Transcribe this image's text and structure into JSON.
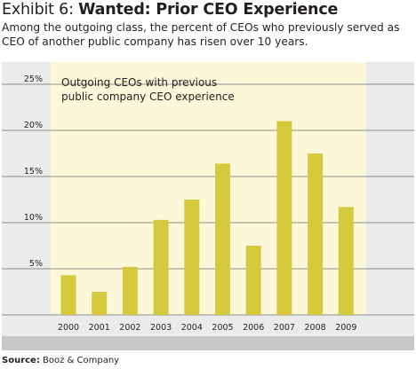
{
  "header": {
    "exhibit_number": "Exhibit 6: ",
    "headline": "Wanted: Prior CEO Experience",
    "subtitle": "Among the outgoing class, the percent of CEOs who previously served as CEO of another public company has risen over 10 years."
  },
  "source": {
    "label": "Source:",
    "text": " Booz & Company"
  },
  "colors": {
    "bar": "#d5c93d",
    "plot_bg": "#fbf7d8",
    "panel_bg": "#ebebeb",
    "footer_band": "#c7c7c7",
    "gridline": "#6d6e71"
  },
  "chart_data": {
    "type": "bar",
    "title": "",
    "xlabel": "",
    "ylabel": "",
    "annotation": "Outgoing CEOs with previous public company CEO experience",
    "annotation_lines": [
      "Outgoing CEOs with previous",
      "public company CEO experience"
    ],
    "categories": [
      "2000",
      "2001",
      "2002",
      "2003",
      "2004",
      "2005",
      "2006",
      "2007",
      "2008",
      "2009"
    ],
    "values": [
      4.3,
      2.5,
      5.2,
      10.3,
      12.5,
      16.4,
      7.5,
      21.0,
      17.5,
      11.7
    ],
    "ylim": [
      0,
      25
    ],
    "yticks": [
      5,
      10,
      15,
      20,
      25
    ],
    "ytick_labels": [
      "5%",
      "10%",
      "15%",
      "20%",
      "25%"
    ],
    "grid": true,
    "legend": "none"
  }
}
